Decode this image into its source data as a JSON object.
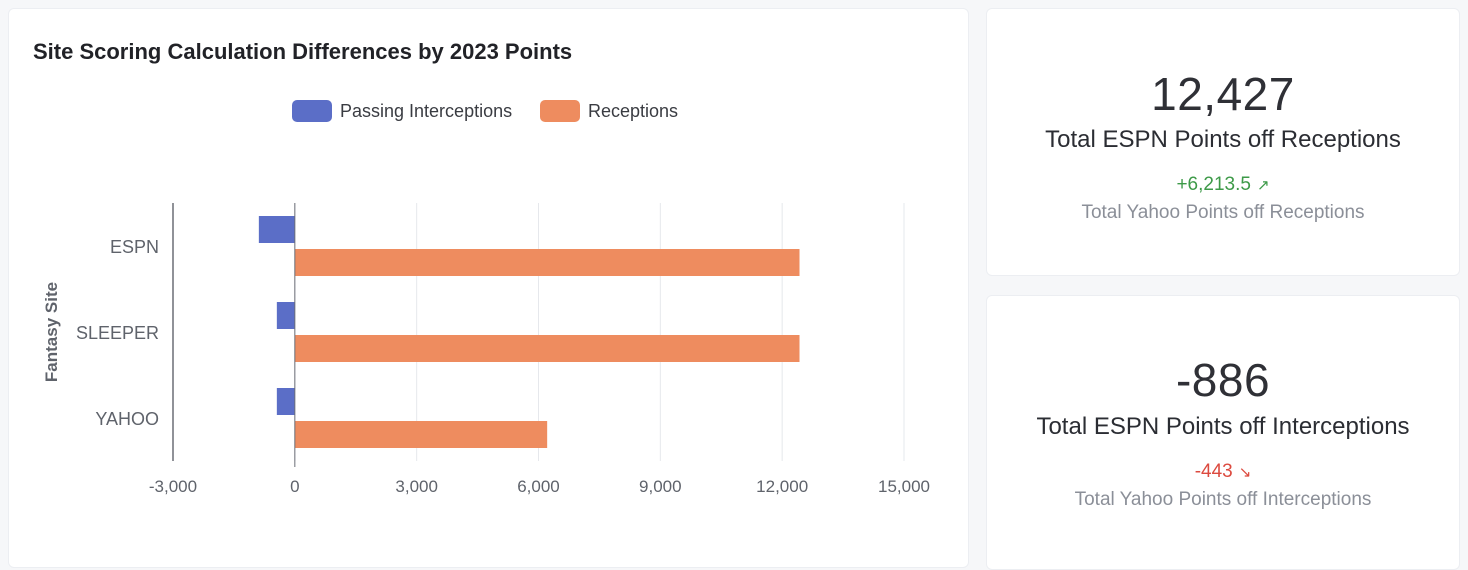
{
  "chart_card": {
    "title": "Site Scoring Calculation Differences by 2023 Points"
  },
  "chart_data": {
    "type": "bar",
    "orientation": "horizontal",
    "title": "Site Scoring Calculation Differences by 2023 Points",
    "ylabel": "Fantasy Site",
    "xlabel": "",
    "categories": [
      "ESPN",
      "SLEEPER",
      "YAHOO"
    ],
    "series": [
      {
        "name": "Passing Interceptions",
        "color": "#5b6ec7",
        "values": [
          -886,
          -443,
          -443
        ]
      },
      {
        "name": "Receptions",
        "color": "#ee8c5f",
        "values": [
          12427,
          12427,
          6213.5
        ]
      }
    ],
    "xlim": [
      -3000,
      15000
    ],
    "x_ticks": [
      "-3,000",
      "0",
      "3,000",
      "6,000",
      "9,000",
      "12,000",
      "15,000"
    ],
    "x_tick_values": [
      -3000,
      0,
      3000,
      6000,
      9000,
      12000,
      15000
    ],
    "legend": "top-center",
    "grid": true
  },
  "kpis": [
    {
      "value": "12,427",
      "label": "Total ESPN Points off Receptions",
      "delta": "+6,213.5",
      "delta_direction": "up",
      "delta_icon": "arrow-up-right-icon",
      "sublabel": "Total Yahoo Points off Receptions",
      "delta_color": "#3d9a48"
    },
    {
      "value": "-886",
      "label": "Total ESPN Points off Interceptions",
      "delta": "-443",
      "delta_direction": "down",
      "delta_icon": "arrow-down-right-icon",
      "sublabel": "Total Yahoo Points off Interceptions",
      "delta_color": "#dc4a3f"
    }
  ]
}
